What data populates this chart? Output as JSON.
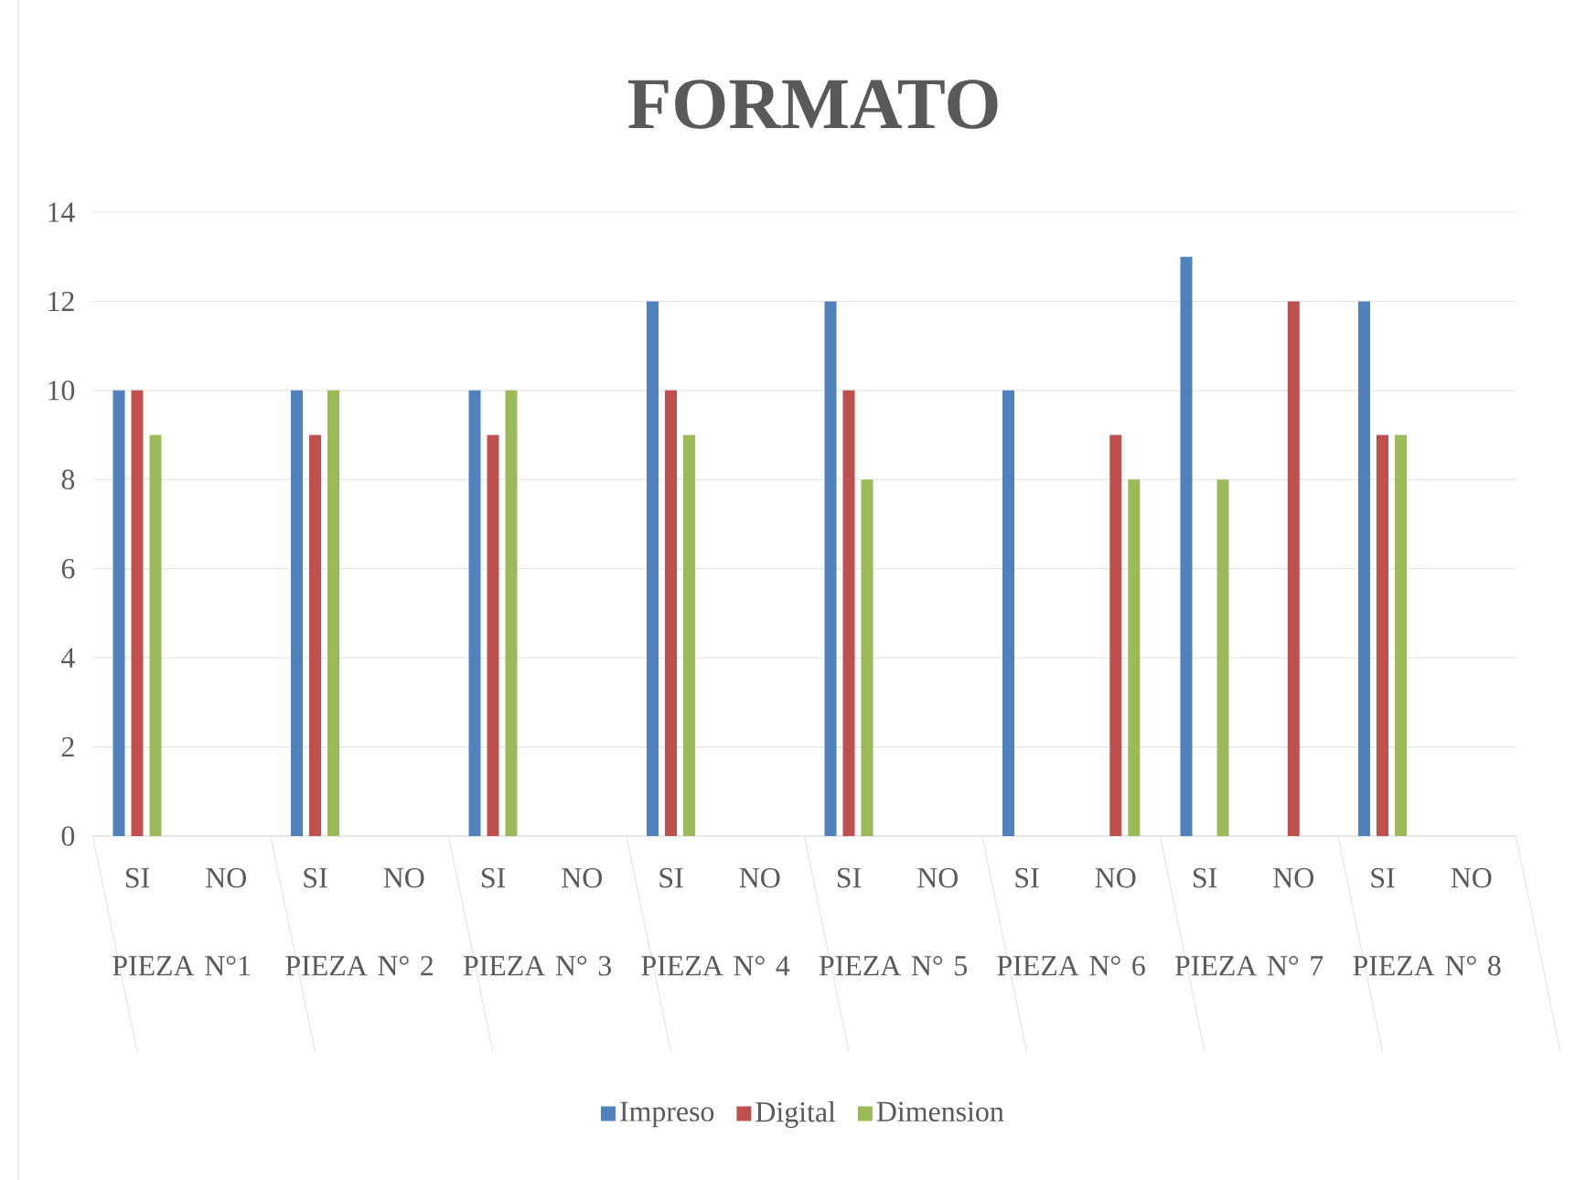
{
  "chart_data": {
    "type": "bar",
    "title": "FORMATO",
    "categories": [
      "SI",
      "NO",
      "SI",
      "NO",
      "SI",
      "NO",
      "SI",
      "NO",
      "SI",
      "NO",
      "SI",
      "NO",
      "SI",
      "NO",
      "SI",
      "NO"
    ],
    "series": [
      {
        "name": "Impreso",
        "color": "#4f81bd",
        "values": [
          10,
          null,
          10,
          null,
          10,
          null,
          12,
          null,
          12,
          null,
          10,
          null,
          13,
          null,
          12,
          null
        ]
      },
      {
        "name": "Digital",
        "color": "#c0504d",
        "values": [
          10,
          null,
          9,
          null,
          9,
          null,
          10,
          null,
          10,
          null,
          null,
          9,
          null,
          12,
          9,
          null
        ]
      },
      {
        "name": "Dimension",
        "color": "#9bbb59",
        "values": [
          9,
          null,
          10,
          null,
          10,
          null,
          9,
          null,
          8,
          null,
          null,
          8,
          8,
          null,
          9,
          null
        ]
      }
    ],
    "annotations": [
      "PIEZA N°1",
      "PIEZA N° 2",
      "PIEZA N° 3",
      "PIEZA N° 4",
      "PIEZA N° 5",
      "PIEZA N° 6",
      "PIEZA N° 7",
      "PIEZA N° 8"
    ],
    "ylim": [
      0,
      14
    ],
    "yticks": [
      0,
      2,
      4,
      6,
      8,
      10,
      12,
      14
    ],
    "grid": "y",
    "legend": "bottom"
  }
}
